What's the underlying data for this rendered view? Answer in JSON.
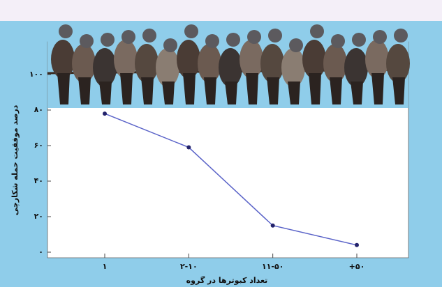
{
  "chart_data": {
    "type": "line",
    "y_label": "درصد موفقیت حمله شکارچی",
    "x_label": "تعداد کبوترها در گروه",
    "categories": [
      "۱",
      "۲-۱۰",
      "۱۱-۵۰",
      "+۵۰"
    ],
    "values": [
      78,
      59,
      15,
      4
    ],
    "color": "#5a63c8",
    "ylim": [
      0,
      100
    ],
    "yticks": [
      {
        "value": 0,
        "label": "۰"
      },
      {
        "value": 20,
        "label": "۲۰"
      },
      {
        "value": 40,
        "label": "۴۰"
      },
      {
        "value": 60,
        "label": "۶۰"
      },
      {
        "value": 80,
        "label": "۸۰"
      },
      {
        "value": 100,
        "label": "۱۰۰"
      }
    ]
  }
}
